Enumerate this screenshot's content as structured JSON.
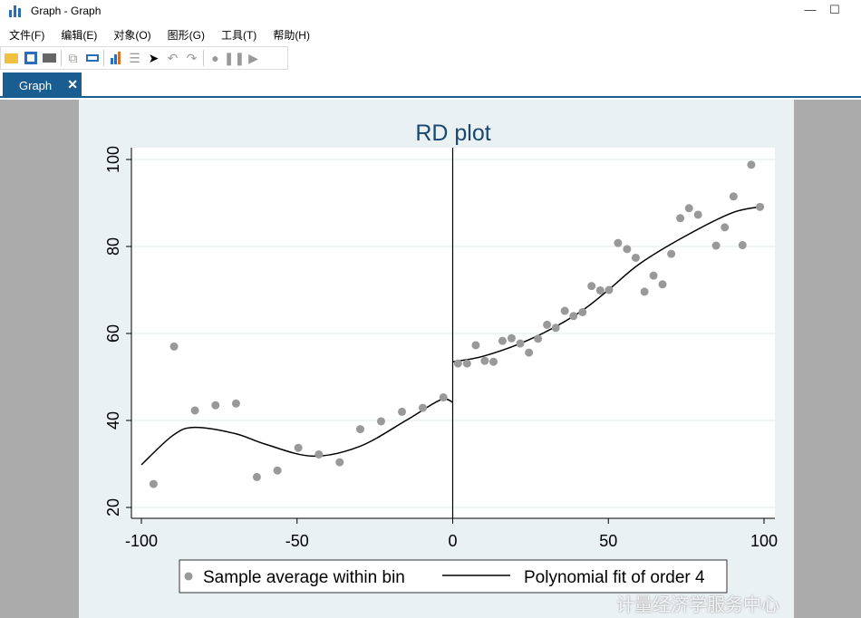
{
  "window": {
    "title": "Graph - Graph",
    "minimize": "—",
    "maximize": "☐"
  },
  "menu": [
    "文件(F)",
    "编辑(E)",
    "对象(O)",
    "图形(G)",
    "工具(T)",
    "帮助(H)"
  ],
  "toolbar": [
    "open-icon",
    "save-icon",
    "print-icon",
    "copy-icon",
    "rename-icon",
    "graph-editor-icon",
    "data-editor-icon",
    "pointer-icon",
    "undo-icon",
    "redo-icon",
    "record-icon",
    "pause-icon",
    "play-icon"
  ],
  "tab": {
    "label": "Graph",
    "close": "✕"
  },
  "watermark": "计量经济学服务中心",
  "chart_data": {
    "type": "scatter",
    "title": "RD plot",
    "xlim": [
      -100,
      100
    ],
    "ylim": [
      20,
      100
    ],
    "xticks": [
      "-100",
      "-50",
      "0",
      "50",
      "100"
    ],
    "yticks": [
      "20",
      "40",
      "60",
      "80",
      "100"
    ],
    "grid": true,
    "cutoff": 0,
    "legend_position": "bottom",
    "colors": {
      "points": "#999999",
      "fit": "#000000",
      "title": "#1a476f"
    },
    "series": [
      {
        "name": "Sample average within bin",
        "kind": "scatter",
        "points": [
          [
            -96.1,
            25.4
          ],
          [
            -89.5,
            57
          ],
          [
            -82.8,
            42.3
          ],
          [
            -76.2,
            43.5
          ],
          [
            -69.6,
            43.9
          ],
          [
            -62.9,
            27
          ],
          [
            -56.3,
            28.5
          ],
          [
            -49.6,
            33.7
          ],
          [
            -43,
            32.2
          ],
          [
            -36.3,
            30.4
          ],
          [
            -29.7,
            38
          ],
          [
            -23,
            39.8
          ],
          [
            -16.3,
            42
          ],
          [
            -9.6,
            42.9
          ],
          [
            -3,
            45.3
          ],
          [
            1.7,
            53.1
          ],
          [
            4.6,
            53.1
          ],
          [
            7.4,
            57.3
          ],
          [
            10.3,
            53.7
          ],
          [
            13.1,
            53.5
          ],
          [
            16,
            58.3
          ],
          [
            18.9,
            58.9
          ],
          [
            21.7,
            57.7
          ],
          [
            24.5,
            55.6
          ],
          [
            27.4,
            58.8
          ],
          [
            30.3,
            62
          ],
          [
            33.1,
            61.3
          ],
          [
            36,
            65.2
          ],
          [
            38.8,
            64
          ],
          [
            41.7,
            64.9
          ],
          [
            44.6,
            70.9
          ],
          [
            47.4,
            69.9
          ],
          [
            50.2,
            70
          ],
          [
            53.1,
            80.8
          ],
          [
            56,
            79.4
          ],
          [
            58.8,
            77.4
          ],
          [
            61.6,
            69.6
          ],
          [
            64.5,
            73.3
          ],
          [
            67.4,
            71.3
          ],
          [
            70.2,
            78.3
          ],
          [
            73.1,
            86.5
          ],
          [
            75.9,
            88.8
          ],
          [
            78.8,
            87.3
          ],
          [
            84.6,
            80.2
          ],
          [
            87.4,
            84.4
          ],
          [
            90.2,
            91.5
          ],
          [
            93.1,
            80.3
          ],
          [
            95.9,
            98.8
          ],
          [
            98.7,
            89.1
          ]
        ]
      },
      {
        "name": "Polynomial fit of order 4",
        "kind": "line",
        "segments": [
          [
            [
              -100,
              29.8
            ],
            [
              -90,
              36.5
            ],
            [
              -83,
              38.4
            ],
            [
              -70,
              37
            ],
            [
              -60,
              34.5
            ],
            [
              -45,
              31.8
            ],
            [
              -30,
              34
            ],
            [
              -15,
              40
            ],
            [
              -4,
              44.7
            ],
            [
              0,
              44.2
            ]
          ],
          [
            [
              0,
              53.5
            ],
            [
              10,
              54.8
            ],
            [
              25,
              58.7
            ],
            [
              40,
              64.5
            ],
            [
              50,
              70
            ],
            [
              60,
              76
            ],
            [
              75,
              82.5
            ],
            [
              90,
              87.8
            ],
            [
              100,
              89.2
            ]
          ]
        ]
      }
    ]
  }
}
